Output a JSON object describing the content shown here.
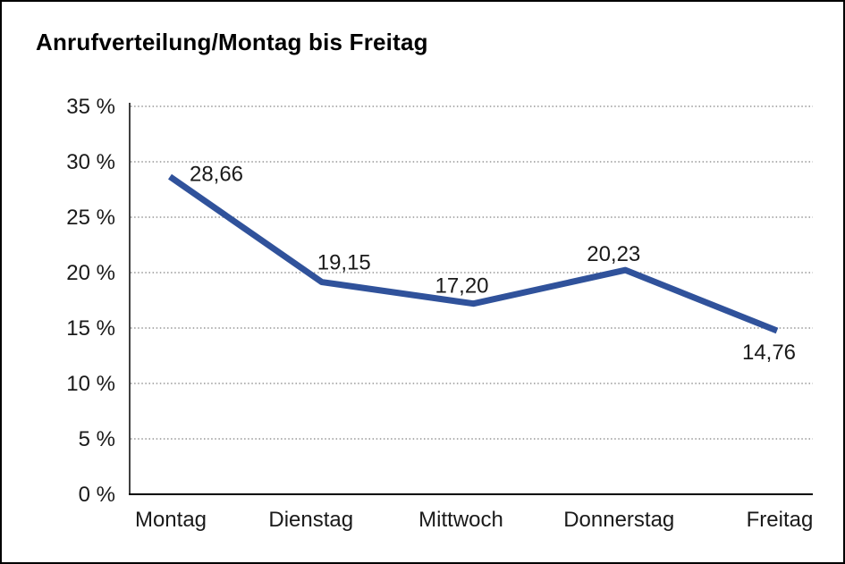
{
  "frame": {
    "background": "#ffffff",
    "border_color": "#000000"
  },
  "chart_data": {
    "type": "line",
    "title": "Anrufverteilung/Montag bis Freitag",
    "categories": [
      "Montag",
      "Dienstag",
      "Mittwoch",
      "Donnerstag",
      "Freitag"
    ],
    "values": [
      28.66,
      19.15,
      17.2,
      20.23,
      14.76
    ],
    "point_labels": [
      "28,66",
      "19,15",
      "17,20",
      "20,23",
      "14,76"
    ],
    "y_ticks": [
      0,
      5,
      10,
      15,
      20,
      25,
      30,
      35
    ],
    "y_tick_labels": [
      "0 %",
      "5 %",
      "10 %",
      "15 %",
      "20 %",
      "25 %",
      "30 %",
      "35 %"
    ],
    "ylim": [
      0,
      35
    ],
    "xlabel": "",
    "ylabel": "",
    "grid": "horizontal-dotted",
    "legend": "none",
    "series_color": "#30529B",
    "gridline_color": "#808080",
    "axis_color": "#000000",
    "text_color": "#1a1a1a"
  }
}
